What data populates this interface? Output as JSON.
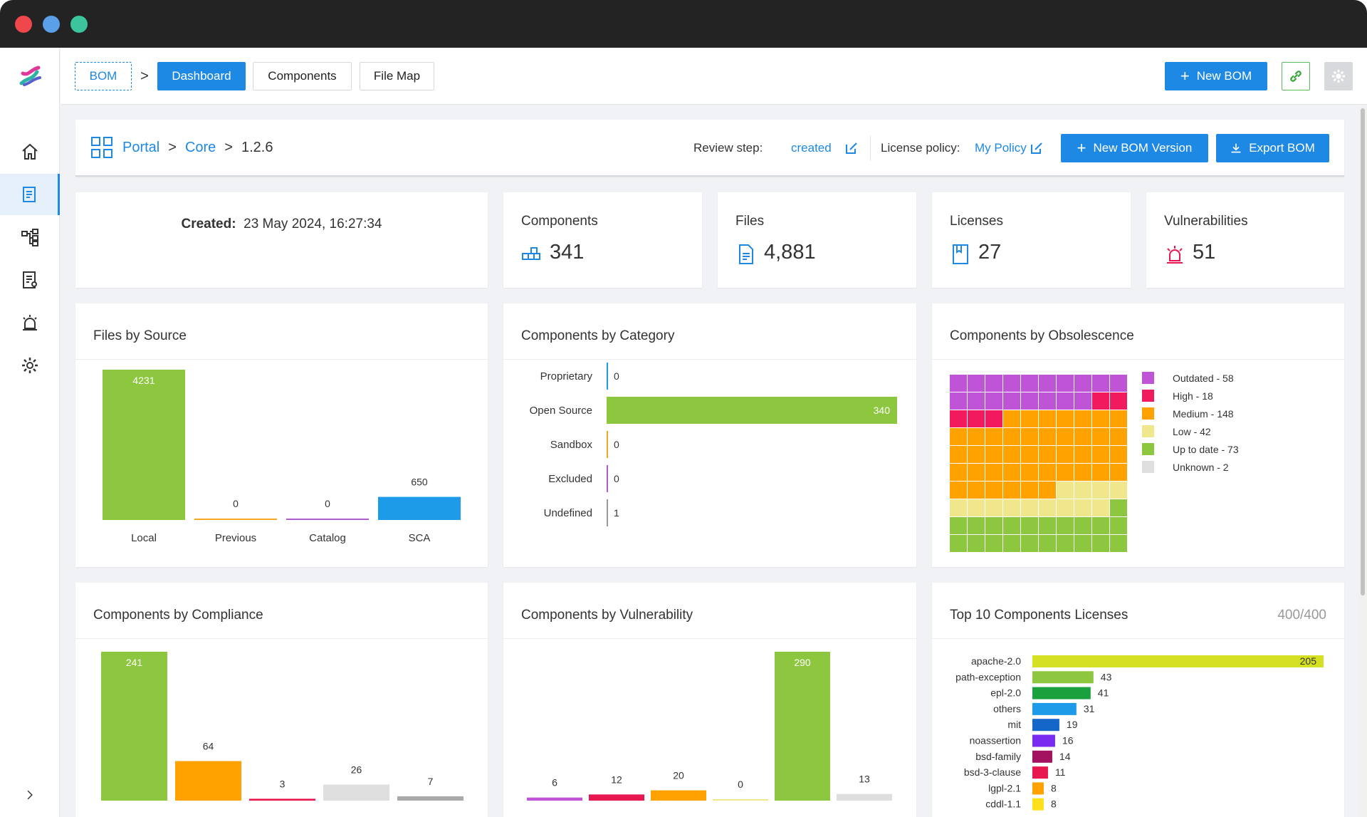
{
  "topbar": {
    "tabs": [
      {
        "label": "BOM"
      },
      {
        "label": "Dashboard"
      },
      {
        "label": "Components"
      },
      {
        "label": "File Map"
      }
    ],
    "separator": ">",
    "new_bom_label": "New BOM"
  },
  "header": {
    "breadcrumb": [
      "Portal",
      "Core",
      "1.2.6"
    ],
    "crumb_sep": ">",
    "review_step_label": "Review step:",
    "review_step_value": "created",
    "license_policy_label": "License policy:",
    "license_policy_value": "My Policy",
    "new_version_label": "New BOM Version",
    "export_label": "Export BOM"
  },
  "created": {
    "label": "Created:",
    "value": "23 May 2024, 16:27:34"
  },
  "stats": [
    {
      "label": "Components",
      "value": "341",
      "icon": "components-icon"
    },
    {
      "label": "Files",
      "value": "4,881",
      "icon": "file-icon"
    },
    {
      "label": "Licenses",
      "value": "27",
      "icon": "book-icon"
    },
    {
      "label": "Vulnerabilities",
      "value": "51",
      "icon": "alarm-icon"
    }
  ],
  "titles": {
    "files_by_source": "Files by Source",
    "by_category": "Components by Category",
    "by_obsolescence": "Components by Obsolescence",
    "by_compliance": "Components by Compliance",
    "by_vulnerability": "Components by Vulnerability",
    "top_licenses": "Top 10 Components Licenses",
    "top_licenses_count": "400/400"
  },
  "chart_data": [
    {
      "type": "bar",
      "title": "Files by Source",
      "categories": [
        "Local",
        "Previous",
        "Catalog",
        "SCA"
      ],
      "values": [
        4231,
        0,
        0,
        650
      ],
      "colors": [
        "#8dc63f",
        "#f5a623",
        "#b05cd1",
        "#1e9be8"
      ],
      "ylim": [
        0,
        4231
      ]
    },
    {
      "type": "bar",
      "orientation": "horizontal",
      "title": "Components by Category",
      "categories": [
        "Proprietary",
        "Open Source",
        "Sandbox",
        "Excluded",
        "Undefined"
      ],
      "values": [
        0,
        340,
        0,
        0,
        1
      ],
      "colors": [
        "#1e9be8",
        "#8dc63f",
        "#f5a623",
        "#b05cd1",
        "#999999"
      ],
      "xlim": [
        0,
        340
      ]
    },
    {
      "type": "heatmap",
      "title": "Components by Obsolescence",
      "categories": [
        "Outdated",
        "High",
        "Medium",
        "Low",
        "Up to date",
        "Unknown"
      ],
      "values": [
        58,
        18,
        148,
        42,
        73,
        2
      ],
      "legend": [
        "Outdated - 58",
        "High - 18",
        "Medium - 148",
        "Low - 42",
        "Up to date - 73",
        "Unknown - 2"
      ],
      "colors": [
        "#bf55d6",
        "#f01a5c",
        "#ffa200",
        "#f0e68c",
        "#8dc63f",
        "#dedede"
      ]
    },
    {
      "type": "bar",
      "title": "Components by Compliance",
      "values": [
        241,
        64,
        3,
        26,
        7
      ],
      "colors": [
        "#8dc63f",
        "#ffa200",
        "#e8174f",
        "#dedede",
        "#aaaaaa"
      ],
      "ylim": [
        0,
        241
      ]
    },
    {
      "type": "bar",
      "title": "Components by Vulnerability",
      "values": [
        6,
        12,
        20,
        0,
        290,
        13
      ],
      "colors": [
        "#bf55d6",
        "#e8174f",
        "#ffa200",
        "#f0e68c",
        "#8dc63f",
        "#dedede"
      ],
      "ylim": [
        0,
        290
      ]
    },
    {
      "type": "bar",
      "orientation": "horizontal",
      "title": "Top 10 Components Licenses",
      "categories": [
        "apache-2.0",
        "path-exception",
        "epl-2.0",
        "others",
        "mit",
        "noassertion",
        "bsd-family",
        "bsd-3-clause",
        "lgpl-2.1",
        "cddl-1.1"
      ],
      "values": [
        205,
        43,
        41,
        31,
        19,
        16,
        14,
        11,
        8,
        8
      ],
      "colors": [
        "#d4e021",
        "#8dc63f",
        "#1aa03c",
        "#1e9be8",
        "#1466c9",
        "#7a2bf0",
        "#a3125e",
        "#e8174f",
        "#ffa200",
        "#ffe01a"
      ],
      "xlim": [
        0,
        205
      ]
    }
  ]
}
